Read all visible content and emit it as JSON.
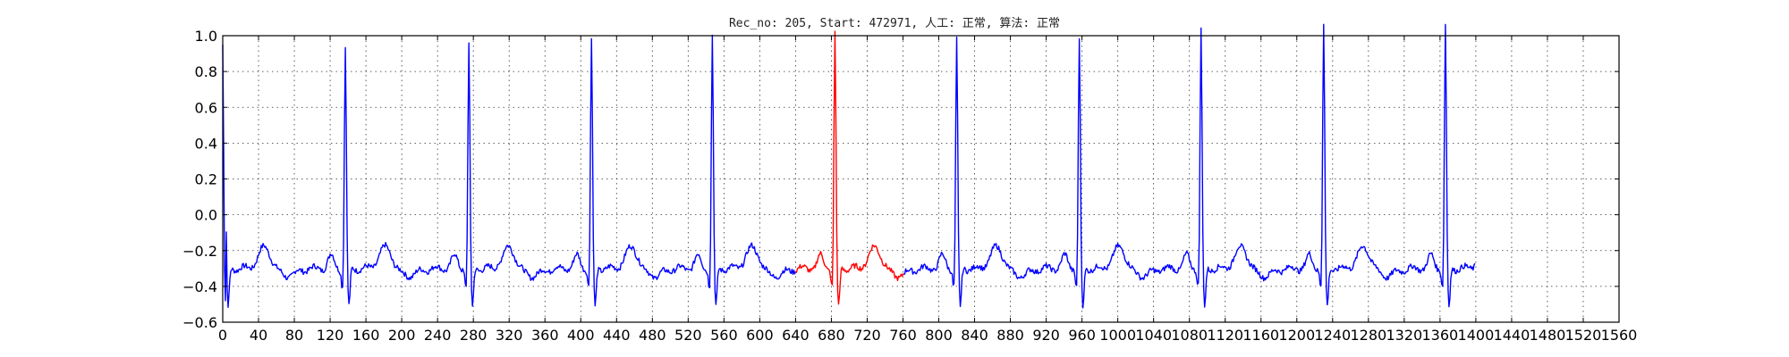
{
  "chart_data": {
    "type": "line",
    "title": "Rec_no: 205, Start: 472971, 人工: 正常, 算法: 正常",
    "xlabel": "",
    "ylabel": "",
    "xlim": [
      0,
      1560
    ],
    "ylim": [
      -0.6,
      1.0
    ],
    "grid": true,
    "xticks": [
      0,
      40,
      80,
      120,
      160,
      200,
      240,
      280,
      320,
      360,
      400,
      440,
      480,
      520,
      560,
      600,
      640,
      680,
      720,
      760,
      800,
      840,
      880,
      920,
      960,
      1000,
      1040,
      1080,
      1120,
      1160,
      1200,
      1240,
      1280,
      1320,
      1360,
      1400,
      1440,
      1480,
      1520,
      1560
    ],
    "yticks": [
      -0.6,
      -0.4,
      -0.2,
      0.0,
      0.2,
      0.4,
      0.6,
      0.8,
      1.0
    ],
    "ytick_labels": [
      "−0.6",
      "−0.4",
      "−0.2",
      "0.0",
      "0.2",
      "0.4",
      "0.6",
      "0.8",
      "1.0"
    ],
    "signal_length": 1400,
    "baseline": -0.3,
    "beats": [
      {
        "r": 2,
        "peak": 0.95,
        "color": "#0000ff"
      },
      {
        "r": 137,
        "peak": 0.84,
        "color": "#0000ff"
      },
      {
        "r": 275,
        "peak": 0.85,
        "color": "#0000ff"
      },
      {
        "r": 412,
        "peak": 0.88,
        "color": "#0000ff"
      },
      {
        "r": 547,
        "peak": 0.9,
        "color": "#0000ff"
      },
      {
        "r": 684,
        "peak": 0.92,
        "color": "#ff0000"
      },
      {
        "r": 820,
        "peak": 0.88,
        "color": "#0000ff"
      },
      {
        "r": 957,
        "peak": 0.89,
        "color": "#0000ff"
      },
      {
        "r": 1093,
        "peak": 0.93,
        "color": "#0000ff"
      },
      {
        "r": 1230,
        "peak": 0.97,
        "color": "#0000ff"
      },
      {
        "r": 1366,
        "peak": 0.96,
        "color": "#0000ff"
      }
    ],
    "highlight_range": [
      640,
      760
    ],
    "highlight_color": "#ff0000",
    "line_color": "#0000ff"
  }
}
